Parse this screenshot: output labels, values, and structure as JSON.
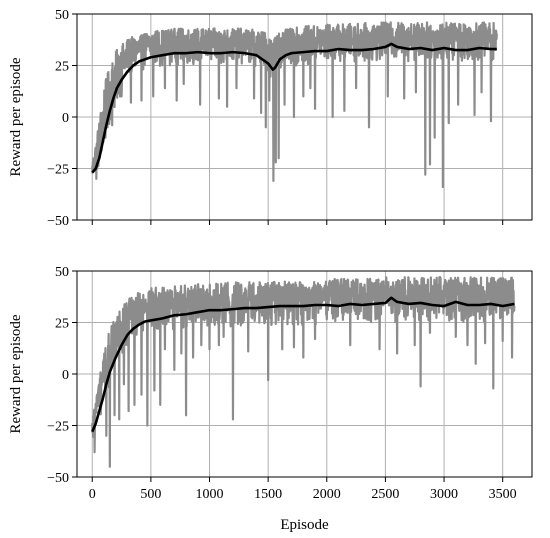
{
  "chart_data": [
    {
      "type": "line",
      "ylabel": "Reward per episode",
      "xlabel": "",
      "xlim": [
        -130,
        3750
      ],
      "ylim": [
        -50,
        50
      ],
      "xticks": [
        0,
        500,
        1000,
        1500,
        2000,
        2500,
        3000,
        3500
      ],
      "xticks_labeled": false,
      "yticks": [
        -50,
        -25,
        0,
        25,
        50
      ],
      "ytick_labels": [
        "−50",
        "−25",
        "0",
        "25",
        "50"
      ],
      "grid": true,
      "series": [
        {
          "role": "raw",
          "color": "#8c8c8c",
          "x_range": [
            0,
            3450
          ],
          "band": {
            "x": [
              0,
              50,
              100,
              150,
              200,
              250,
              300,
              400,
              500,
              700,
              1000,
              1300,
              1450,
              1530,
              1550,
              1600,
              1800,
              2000,
              2500,
              3000,
              3450
            ],
            "low": [
              -30,
              -28,
              -18,
              -5,
              2,
              12,
              18,
              22,
              24,
              25,
              25,
              25,
              24,
              18,
              18,
              24,
              25,
              26,
              27,
              27,
              27
            ],
            "high": [
              -22,
              -5,
              15,
              25,
              32,
              35,
              38,
              40,
              42,
              43,
              43,
              43,
              42,
              39,
              39,
              42,
              44,
              45,
              46,
              46,
              46
            ]
          },
          "dips": [
            [
              35,
              -30
            ],
            [
              95,
              -12
            ],
            [
              130,
              -5
            ],
            [
              170,
              -4
            ],
            [
              250,
              10
            ],
            [
              330,
              7
            ],
            [
              420,
              8
            ],
            [
              520,
              10
            ],
            [
              620,
              14
            ],
            [
              720,
              8
            ],
            [
              780,
              16
            ],
            [
              920,
              6
            ],
            [
              1080,
              9
            ],
            [
              1150,
              5
            ],
            [
              1230,
              14
            ],
            [
              1380,
              9
            ],
            [
              1440,
              2
            ],
            [
              1480,
              -5
            ],
            [
              1510,
              8
            ],
            [
              1545,
              -31
            ],
            [
              1565,
              -22
            ],
            [
              1590,
              -20
            ],
            [
              1640,
              6
            ],
            [
              1720,
              0
            ],
            [
              1800,
              10
            ],
            [
              1860,
              14
            ],
            [
              1900,
              4
            ],
            [
              2050,
              0
            ],
            [
              2150,
              3
            ],
            [
              2250,
              14
            ],
            [
              2360,
              -5
            ],
            [
              2520,
              10
            ],
            [
              2660,
              9
            ],
            [
              2760,
              12
            ],
            [
              2840,
              -28
            ],
            [
              2880,
              -23
            ],
            [
              2920,
              -10
            ],
            [
              2990,
              -34
            ],
            [
              3040,
              -3
            ],
            [
              3120,
              6
            ],
            [
              3260,
              1
            ],
            [
              3320,
              12
            ],
            [
              3400,
              -2
            ]
          ]
        },
        {
          "role": "moving-average",
          "color": "#000000",
          "x": [
            0,
            30,
            60,
            90,
            120,
            150,
            180,
            210,
            250,
            300,
            350,
            400,
            450,
            500,
            600,
            700,
            800,
            900,
            1000,
            1100,
            1200,
            1300,
            1400,
            1450,
            1500,
            1540,
            1560,
            1600,
            1650,
            1700,
            1800,
            1900,
            2000,
            2100,
            2200,
            2300,
            2400,
            2500,
            2550,
            2600,
            2700,
            2800,
            2900,
            3000,
            3100,
            3200,
            3300,
            3400,
            3450
          ],
          "y": [
            -27,
            -25,
            -20,
            -12,
            -4,
            3,
            9,
            14,
            18,
            22,
            25,
            27,
            28,
            29,
            30,
            31,
            31,
            31.5,
            31,
            31,
            31.5,
            31,
            30,
            28,
            26,
            23,
            24,
            28,
            30,
            31,
            31.5,
            32,
            32,
            33,
            32.5,
            32.5,
            33,
            34,
            35.5,
            34,
            33,
            33.5,
            32.5,
            33.5,
            32.5,
            32.5,
            33.5,
            33,
            33
          ]
        }
      ]
    },
    {
      "type": "line",
      "ylabel": "Reward per episode",
      "xlabel": "Episode",
      "xlim": [
        -130,
        3750
      ],
      "ylim": [
        -50,
        50
      ],
      "xticks": [
        0,
        500,
        1000,
        1500,
        2000,
        2500,
        3000,
        3500
      ],
      "xtick_labels": [
        "0",
        "500",
        "1000",
        "1500",
        "2000",
        "2500",
        "3000",
        "3500"
      ],
      "yticks": [
        -50,
        -25,
        0,
        25,
        50
      ],
      "ytick_labels": [
        "−50",
        "−25",
        "0",
        "25",
        "50"
      ],
      "grid": true,
      "series": [
        {
          "role": "raw",
          "color": "#8c8c8c",
          "x_range": [
            0,
            3600
          ],
          "band": {
            "x": [
              0,
              50,
              100,
              150,
              200,
              250,
              300,
              400,
              500,
              700,
              1000,
              1500,
              2000,
              2500,
              3000,
              3600
            ],
            "low": [
              -32,
              -25,
              -15,
              -6,
              2,
              8,
              14,
              18,
              20,
              21,
              22,
              23,
              24,
              25,
              25,
              25
            ],
            "high": [
              -22,
              -5,
              10,
              22,
              28,
              32,
              36,
              40,
              42,
              43,
              44,
              45,
              46,
              47,
              47,
              47
            ]
          },
          "dips": [
            [
              20,
              -38
            ],
            [
              75,
              -15
            ],
            [
              120,
              -30
            ],
            [
              150,
              -45
            ],
            [
              190,
              -20
            ],
            [
              230,
              -22
            ],
            [
              270,
              -5
            ],
            [
              310,
              -18
            ],
            [
              360,
              -15
            ],
            [
              420,
              -10
            ],
            [
              470,
              -25
            ],
            [
              530,
              -8
            ],
            [
              580,
              -15
            ],
            [
              620,
              12
            ],
            [
              700,
              2
            ],
            [
              760,
              10
            ],
            [
              800,
              -20
            ],
            [
              860,
              8
            ],
            [
              930,
              14
            ],
            [
              1000,
              12
            ],
            [
              1080,
              14
            ],
            [
              1120,
              18
            ],
            [
              1200,
              -22
            ],
            [
              1330,
              11
            ],
            [
              1500,
              -3
            ],
            [
              1620,
              12
            ],
            [
              1720,
              13
            ],
            [
              1800,
              8
            ],
            [
              1900,
              17
            ],
            [
              2200,
              14
            ],
            [
              2450,
              12
            ],
            [
              2600,
              10
            ],
            [
              2750,
              14
            ],
            [
              2800,
              -6
            ],
            [
              2880,
              20
            ],
            [
              3100,
              18
            ],
            [
              3200,
              14
            ],
            [
              3270,
              5
            ],
            [
              3350,
              15
            ],
            [
              3420,
              -7
            ],
            [
              3500,
              16
            ],
            [
              3580,
              8
            ]
          ]
        },
        {
          "role": "moving-average",
          "color": "#000000",
          "x": [
            0,
            30,
            60,
            90,
            120,
            150,
            200,
            250,
            300,
            350,
            400,
            450,
            500,
            600,
            700,
            800,
            900,
            1000,
            1100,
            1200,
            1300,
            1400,
            1500,
            1600,
            1700,
            1800,
            1900,
            2000,
            2100,
            2200,
            2300,
            2400,
            2500,
            2550,
            2600,
            2700,
            2800,
            2900,
            3000,
            3100,
            3200,
            3300,
            3400,
            3500,
            3600
          ],
          "y": [
            -28,
            -24,
            -18,
            -12,
            -5,
            1,
            8,
            14,
            19,
            22,
            24,
            25.5,
            26,
            27,
            28.5,
            29,
            30,
            31,
            31,
            31.5,
            32,
            32,
            32.5,
            33,
            33,
            33,
            33.5,
            33.5,
            33,
            34,
            33.5,
            34,
            34.5,
            37,
            35,
            34,
            34.5,
            33.5,
            33,
            35,
            33.5,
            33.5,
            34,
            33,
            34
          ]
        }
      ]
    }
  ]
}
